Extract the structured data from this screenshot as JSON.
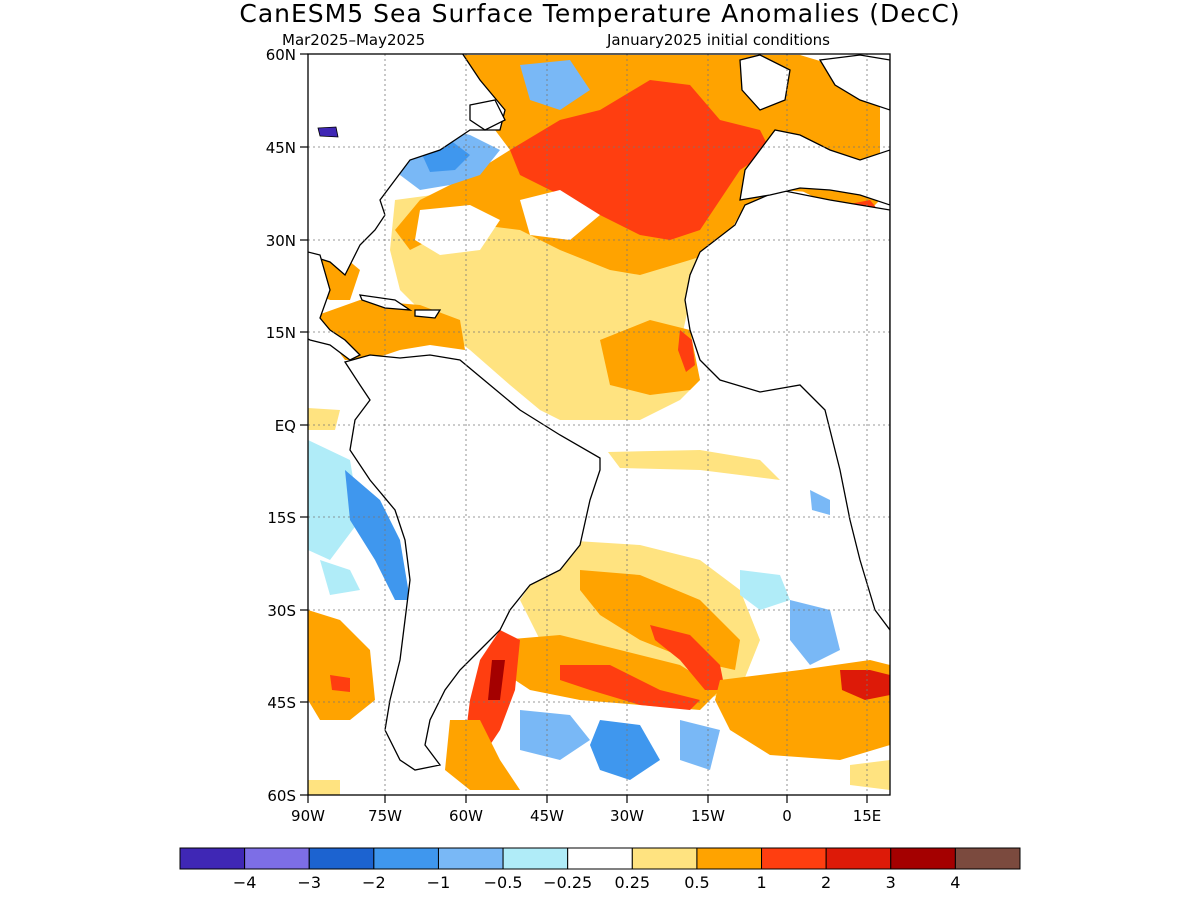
{
  "title": "CanESM5 Sea Surface Temperature Anomalies (DecC)",
  "subtitle_left": "Mar2025–May2025",
  "subtitle_right": "January2025 initial conditions",
  "lat_labels": [
    "60N",
    "45N",
    "30N",
    "15N",
    "EQ",
    "15S",
    "30S",
    "45S",
    "60S"
  ],
  "lon_labels": [
    "90W",
    "75W",
    "60W",
    "45W",
    "30W",
    "15W",
    "0",
    "15E"
  ],
  "colorbar": {
    "colors": [
      "#3f27b5",
      "#7d6ee6",
      "#1c63d0",
      "#3f97ee",
      "#79b8f6",
      "#b0ecf8",
      "#ffffff",
      "#ffe380",
      "#ffa300",
      "#ff3e10",
      "#dd1a08",
      "#a40000",
      "#7b4a3e"
    ],
    "labels": [
      "−4",
      "−3",
      "−2",
      "−1",
      "−0.5",
      "−0.25",
      "0.25",
      "0.5",
      "1",
      "2",
      "3",
      "4"
    ]
  },
  "map": {
    "lon_range": [
      -90,
      17
    ],
    "lat_range": [
      -60,
      60
    ]
  }
}
